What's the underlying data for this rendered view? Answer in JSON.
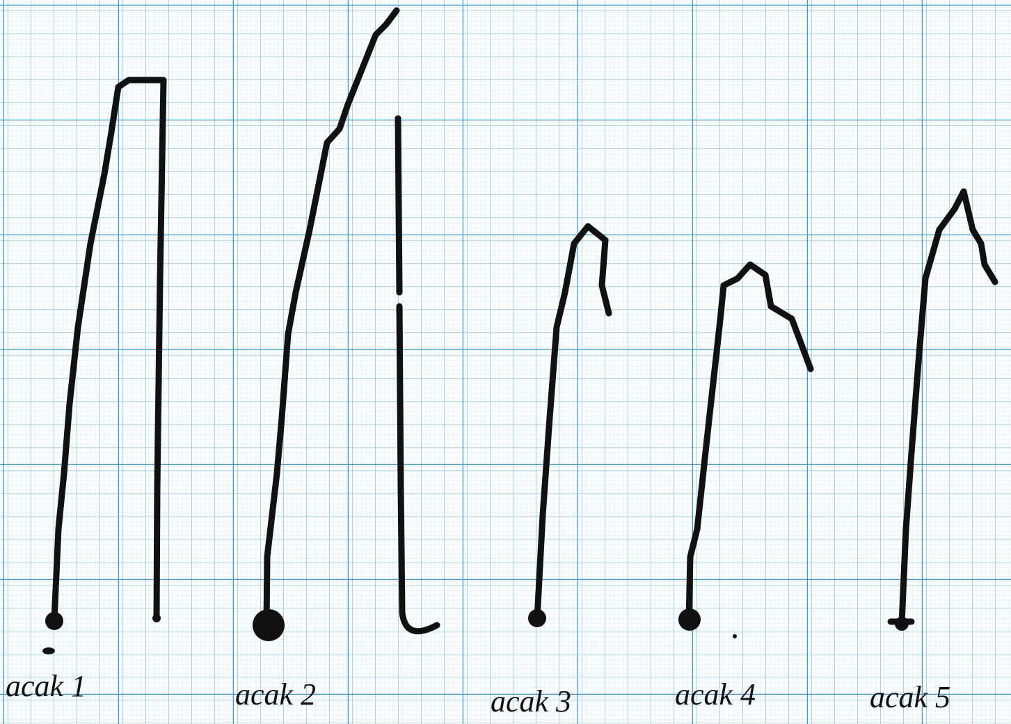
{
  "labels": [
    "acak 1",
    "acak 2",
    "acak 3",
    "acak 4",
    "acak 5"
  ]
}
